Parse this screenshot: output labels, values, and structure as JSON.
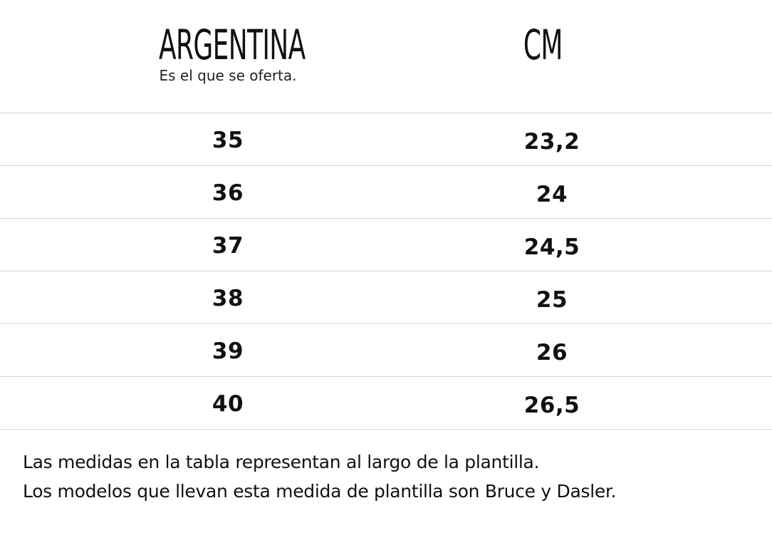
{
  "header": {
    "size_column_title": "ARGENTINA",
    "size_column_subtitle": "Es el que se oferta.",
    "cm_column_title": "CM"
  },
  "rows": [
    {
      "size": "35",
      "cm": "23,2"
    },
    {
      "size": "36",
      "cm": "24"
    },
    {
      "size": "37",
      "cm": "24,5"
    },
    {
      "size": "38",
      "cm": "25"
    },
    {
      "size": "39",
      "cm": "26"
    },
    {
      "size": "40",
      "cm": "26,5"
    }
  ],
  "notes": [
    "Las medidas en la tabla representan al largo de la plantilla.",
    "Los modelos que llevan esta medida de plantilla son Bruce y Dasler."
  ]
}
